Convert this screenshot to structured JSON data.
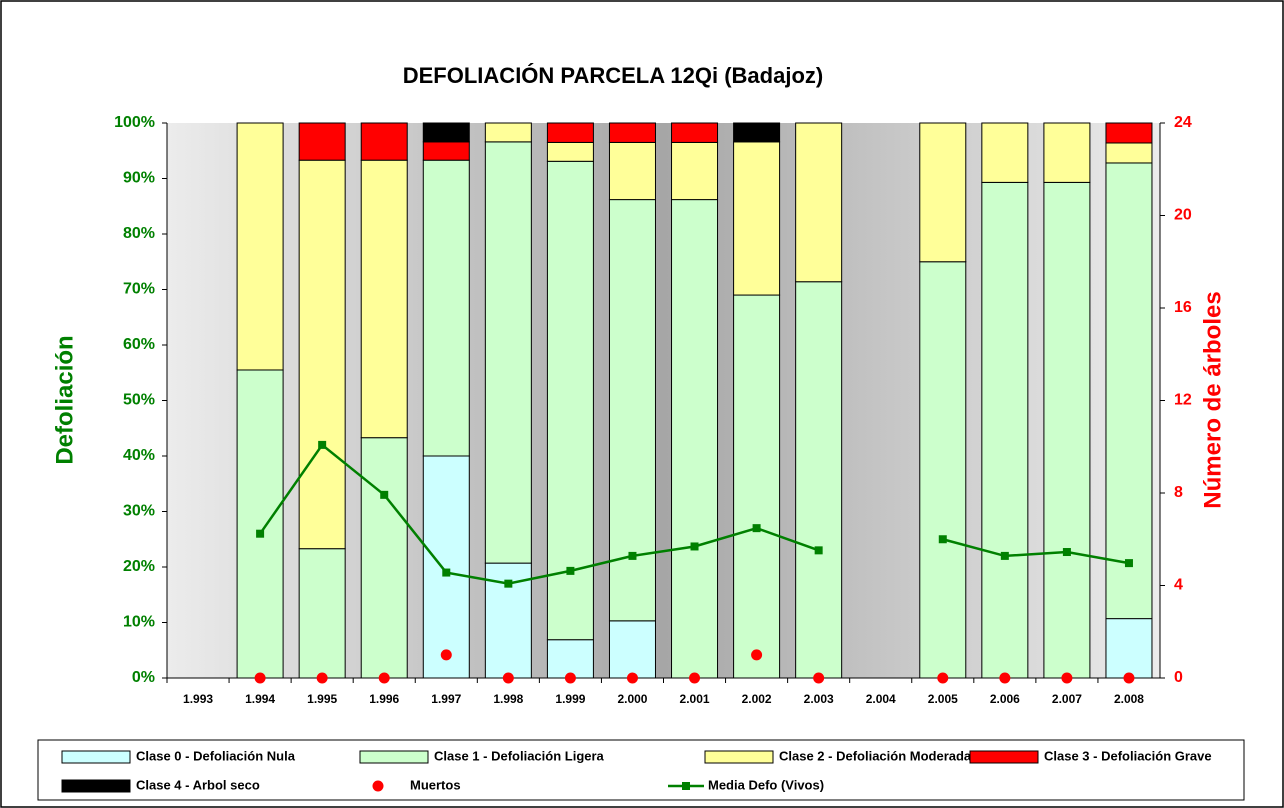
{
  "chart_data": {
    "type": "bar",
    "title": "DEFOLIACIÓN PARCELA 12Qi (Badajoz)",
    "y_label": "Defoliación",
    "y2_label": "Número de árboles",
    "categories": [
      "1.993",
      "1.994",
      "1.995",
      "1.996",
      "1.997",
      "1.998",
      "1.999",
      "2.000",
      "2.001",
      "2.002",
      "2.003",
      "2.004",
      "2.005",
      "2.006",
      "2.007",
      "2.008"
    ],
    "stacked": true,
    "series": [
      {
        "name": "Clase 0 - Defoliación Nula",
        "type": "bar",
        "color": "#ccffff",
        "values": [
          null,
          0,
          0,
          0,
          40,
          20.7,
          6.9,
          10.3,
          0,
          0,
          0,
          null,
          0,
          0,
          0,
          10.7
        ]
      },
      {
        "name": "Clase 1 - Defoliación Ligera",
        "type": "bar",
        "color": "#ccffcc",
        "values": [
          null,
          55.5,
          23.3,
          43.3,
          53.3,
          75.9,
          86.2,
          75.9,
          86.2,
          69,
          71.4,
          null,
          75,
          89.3,
          89.3,
          82.1
        ]
      },
      {
        "name": "Clase 2 - Defoliación Moderada",
        "type": "bar",
        "color": "#ffff99",
        "values": [
          null,
          44.5,
          70,
          50,
          0,
          3.4,
          3.4,
          10.3,
          10.3,
          27.6,
          28.6,
          null,
          25,
          10.7,
          10.7,
          3.6
        ]
      },
      {
        "name": "Clase 3 - Defoliación Grave",
        "type": "bar",
        "color": "#ff0000",
        "values": [
          null,
          0,
          6.7,
          6.7,
          3.3,
          0,
          3.5,
          3.5,
          3.5,
          0,
          0,
          null,
          0,
          0,
          0,
          3.6
        ]
      },
      {
        "name": "Clase 4 - Arbol seco",
        "type": "bar",
        "color": "#000000",
        "values": [
          null,
          0,
          0,
          0,
          3.4,
          0,
          0,
          0,
          0,
          3.4,
          0,
          null,
          0,
          0,
          0,
          0
        ]
      },
      {
        "name": "Muertos",
        "type": "scatter",
        "axis": "y2",
        "color": "#ff0000",
        "values": [
          null,
          0,
          0,
          0,
          1,
          0,
          0,
          0,
          0,
          1,
          0,
          null,
          0,
          0,
          0,
          0
        ]
      },
      {
        "name": "Media Defo (Vivos)",
        "type": "line",
        "color": "#008000",
        "values": [
          null,
          26,
          42,
          33,
          19,
          17,
          19.3,
          22,
          23.7,
          27,
          23,
          null,
          25,
          22,
          22.7,
          20.7
        ]
      }
    ],
    "ylim": [
      0,
      100
    ],
    "yticks": [
      {
        "value": 0,
        "label": "0%"
      },
      {
        "value": 10,
        "label": "10%"
      },
      {
        "value": 20,
        "label": "20%"
      },
      {
        "value": 30,
        "label": "30%"
      },
      {
        "value": 40,
        "label": "40%"
      },
      {
        "value": 50,
        "label": "50%"
      },
      {
        "value": 60,
        "label": "60%"
      },
      {
        "value": 70,
        "label": "70%"
      },
      {
        "value": 80,
        "label": "80%"
      },
      {
        "value": 90,
        "label": "90%"
      },
      {
        "value": 100,
        "label": "100%"
      }
    ],
    "y2lim": [
      0,
      24
    ],
    "y2ticks": [
      0,
      4,
      8,
      12,
      16,
      20,
      24
    ],
    "grid": false,
    "legend": "bottom"
  }
}
